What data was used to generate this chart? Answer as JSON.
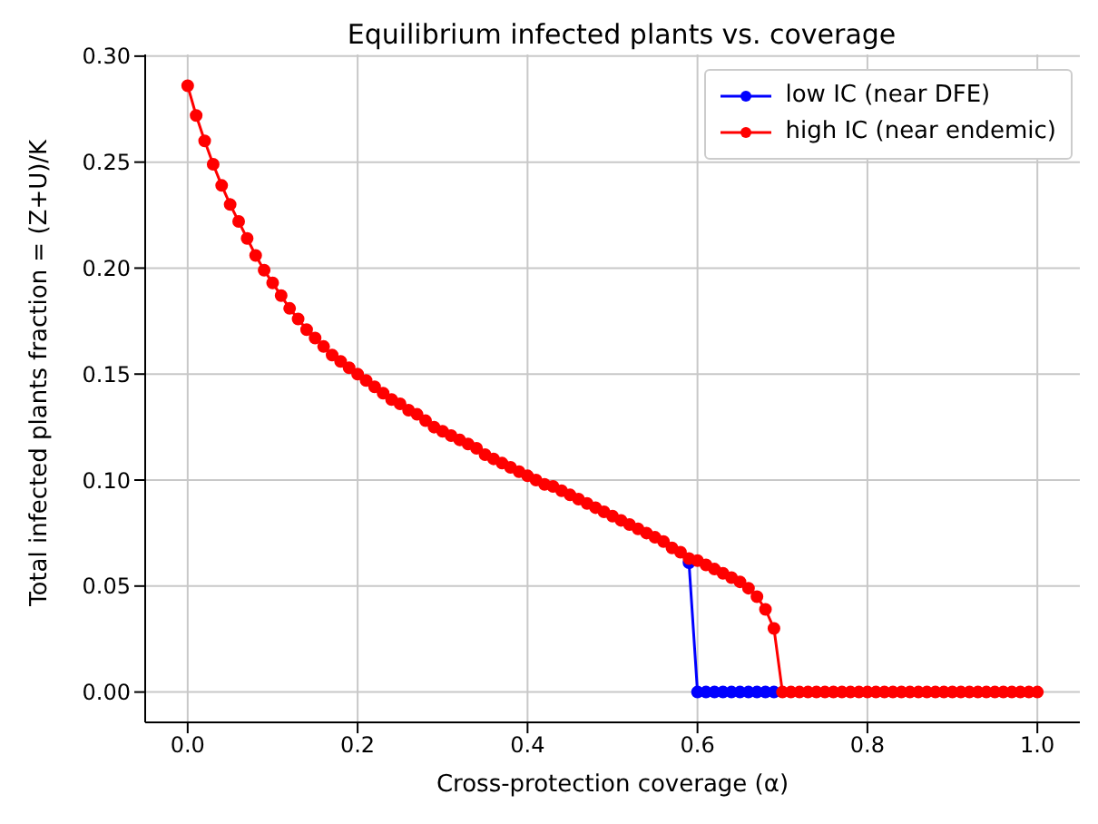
{
  "chart_data": {
    "type": "line",
    "title": "Equilibrium infected plants vs. coverage",
    "xlabel": "Cross-protection coverage (α)",
    "ylabel": "Total infected plants fraction = (Z+U)/K",
    "x": [
      0,
      0.01,
      0.02,
      0.03,
      0.04,
      0.05,
      0.06,
      0.07,
      0.08,
      0.09,
      0.1,
      0.11,
      0.12,
      0.13,
      0.14,
      0.15,
      0.16,
      0.17,
      0.18,
      0.19,
      0.2,
      0.21,
      0.22,
      0.23,
      0.24,
      0.25,
      0.26,
      0.27,
      0.28,
      0.29,
      0.3,
      0.31,
      0.32,
      0.33,
      0.34,
      0.35,
      0.36,
      0.37,
      0.38,
      0.39,
      0.4,
      0.41,
      0.42,
      0.43,
      0.44,
      0.45,
      0.46,
      0.47,
      0.48,
      0.49,
      0.5,
      0.51,
      0.52,
      0.53,
      0.54,
      0.55,
      0.56,
      0.57,
      0.58,
      0.59,
      0.6,
      0.61,
      0.62,
      0.63,
      0.64,
      0.65,
      0.66,
      0.67,
      0.68,
      0.69,
      0.7,
      0.71,
      0.72,
      0.73,
      0.74,
      0.75,
      0.76,
      0.77,
      0.78,
      0.79,
      0.8,
      0.81,
      0.82,
      0.83,
      0.84,
      0.85,
      0.86,
      0.87,
      0.88,
      0.89,
      0.9,
      0.91,
      0.92,
      0.93,
      0.94,
      0.95,
      0.96,
      0.97,
      0.98,
      0.99,
      1
    ],
    "series": [
      {
        "name": "low IC (near DFE)",
        "color": "#0000ff",
        "values": [
          null,
          null,
          null,
          null,
          null,
          null,
          null,
          null,
          null,
          null,
          null,
          null,
          null,
          null,
          null,
          null,
          null,
          null,
          null,
          null,
          null,
          null,
          null,
          null,
          null,
          null,
          null,
          null,
          null,
          null,
          null,
          null,
          null,
          null,
          null,
          null,
          null,
          null,
          null,
          null,
          null,
          null,
          null,
          null,
          null,
          null,
          null,
          null,
          null,
          null,
          null,
          null,
          null,
          null,
          null,
          null,
          null,
          null,
          null,
          0.061,
          0,
          0,
          0,
          0,
          0,
          0,
          0,
          0,
          0,
          0,
          null,
          null,
          null,
          null,
          null,
          null,
          null,
          null,
          null,
          null,
          null,
          null,
          null,
          null,
          null,
          null,
          null,
          null,
          null,
          null,
          null,
          null,
          null,
          null,
          null,
          null,
          null,
          null,
          null,
          null,
          null
        ]
      },
      {
        "name": "high IC (near endemic)",
        "color": "#ff0000",
        "values": [
          0.286,
          0.272,
          0.26,
          0.249,
          0.239,
          0.23,
          0.222,
          0.214,
          0.206,
          0.199,
          0.193,
          0.187,
          0.181,
          0.176,
          0.171,
          0.167,
          0.163,
          0.159,
          0.156,
          0.153,
          0.15,
          0.147,
          0.144,
          0.141,
          0.138,
          0.136,
          0.133,
          0.131,
          0.128,
          0.125,
          0.123,
          0.121,
          0.119,
          0.117,
          0.115,
          0.112,
          0.11,
          0.108,
          0.106,
          0.104,
          0.102,
          0.1,
          0.098,
          0.097,
          0.095,
          0.093,
          0.091,
          0.089,
          0.087,
          0.085,
          0.083,
          0.081,
          0.079,
          0.077,
          0.075,
          0.073,
          0.071,
          0.068,
          0.066,
          0.063,
          0.062,
          0.06,
          0.058,
          0.056,
          0.054,
          0.052,
          0.049,
          0.045,
          0.039,
          0.03,
          0,
          0,
          0,
          0,
          0,
          0,
          0,
          0,
          0,
          0,
          0,
          0,
          0,
          0,
          0,
          0,
          0,
          0,
          0,
          0,
          0,
          0,
          0,
          0,
          0,
          0,
          0,
          0,
          0,
          0,
          0
        ]
      }
    ],
    "xlim": [
      -0.05,
      1.05
    ],
    "xticks": [
      {
        "value": 0,
        "label": "0.0"
      },
      {
        "value": 0.2,
        "label": "0.2"
      },
      {
        "value": 0.4,
        "label": "0.4"
      },
      {
        "value": 0.6,
        "label": "0.6"
      },
      {
        "value": 0.8,
        "label": "0.8"
      },
      {
        "value": 1,
        "label": "1.0"
      }
    ],
    "ylim": [
      -0.0143,
      0.3008
    ],
    "yticks": [
      {
        "value": 0,
        "label": "0.00"
      },
      {
        "value": 0.05,
        "label": "0.05"
      },
      {
        "value": 0.1,
        "label": "0.10"
      },
      {
        "value": 0.15,
        "label": "0.15"
      },
      {
        "value": 0.2,
        "label": "0.20"
      },
      {
        "value": 0.25,
        "label": "0.25"
      },
      {
        "value": 0.3,
        "label": "0.30"
      }
    ],
    "grid": true,
    "legend": "top right",
    "marker": "circle",
    "line_style": "solid"
  }
}
